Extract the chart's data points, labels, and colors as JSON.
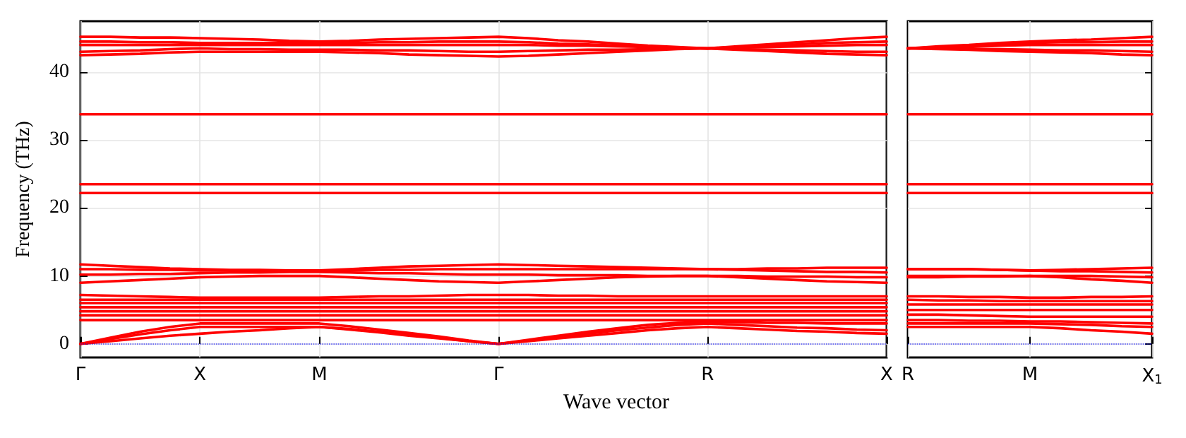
{
  "chart_data": [
    {
      "type": "line",
      "ylabel": "Frequency (THz)",
      "xlabel": "Wave vector",
      "grid": true,
      "marker": "none",
      "line_style": "solid",
      "categories": [
        "Γ",
        null,
        null,
        null,
        "X",
        null,
        null,
        null,
        "M",
        null,
        null,
        null,
        null,
        null,
        "Γ",
        null,
        null,
        null,
        null,
        null,
        null,
        "R",
        null,
        null,
        null,
        null,
        null,
        "X"
      ],
      "ylim": [
        -2,
        47.5
      ],
      "yticks": [
        0,
        10,
        20,
        30,
        40
      ],
      "ref_lines": [
        {
          "axis": "y",
          "value": 0,
          "color": "#0000ff",
          "line_style": "dotted"
        }
      ],
      "series": [
        {
          "color": "#ff0000",
          "values": [
            0,
            0.4,
            0.8,
            1.2,
            1.5,
            1.8,
            2,
            2.3,
            2.5,
            2.1,
            1.7,
            1.2,
            0.8,
            0.4,
            0,
            0.4,
            0.8,
            1.2,
            1.6,
            2,
            2.3,
            2.5,
            2.3,
            2.1,
            1.9,
            1.8,
            1.6,
            1.5
          ]
        },
        {
          "color": "#ff0000",
          "values": [
            0,
            0.7,
            1.4,
            2,
            2.5,
            2.5,
            2.5,
            2.5,
            2.5,
            2.2,
            1.8,
            1.3,
            0.9,
            0.4,
            0,
            0.5,
            1,
            1.5,
            2,
            2.4,
            2.8,
            3,
            2.8,
            2.6,
            2.4,
            2.3,
            2.1,
            2
          ]
        },
        {
          "color": "#ff0000",
          "values": [
            0,
            0.9,
            1.8,
            2.5,
            3,
            3,
            3,
            3,
            3,
            2.6,
            2.1,
            1.6,
            1.1,
            0.5,
            0,
            0.6,
            1.2,
            1.8,
            2.3,
            2.8,
            3.1,
            3.2,
            3.2,
            3.1,
            3.1,
            3,
            3,
            3
          ]
        },
        {
          "color": "#ff0000",
          "values": [
            3.5,
            3.5,
            3.5,
            3.5,
            3.5,
            3.5,
            3.5,
            3.5,
            3.5,
            3.5,
            3.5,
            3.5,
            3.5,
            3.5,
            3.5,
            3.5,
            3.5,
            3.5,
            3.5,
            3.5,
            3.5,
            3.5,
            3.5,
            3.5,
            3.5,
            3.5,
            3.5,
            3.5
          ]
        },
        {
          "color": "#ff0000",
          "values": [
            4.2,
            4.2,
            4.2,
            4.2,
            4.2,
            4.2,
            4.2,
            4.2,
            4.2,
            4.2,
            4.2,
            4.2,
            4.2,
            4.2,
            4.2,
            4.2,
            4.2,
            4.2,
            4.2,
            4.2,
            4.2,
            4.2,
            4.2,
            4.2,
            4.2,
            4.2,
            4.2,
            4.2
          ]
        },
        {
          "color": "#ff0000",
          "values": [
            4.8,
            4.8,
            4.8,
            4.8,
            4.8,
            4.8,
            4.8,
            4.8,
            4.8,
            4.8,
            4.8,
            4.8,
            4.8,
            4.8,
            4.8,
            4.8,
            4.8,
            4.8,
            4.8,
            4.8,
            4.8,
            4.8,
            4.8,
            4.8,
            4.8,
            4.8,
            4.8,
            4.8
          ]
        },
        {
          "color": "#ff0000",
          "values": [
            5.4,
            5.4,
            5.4,
            5.4,
            5.4,
            5.4,
            5.4,
            5.4,
            5.4,
            5.4,
            5.4,
            5.4,
            5.4,
            5.4,
            5.4,
            5.4,
            5.4,
            5.4,
            5.4,
            5.4,
            5.4,
            5.4,
            5.4,
            5.4,
            5.4,
            5.4,
            5.4,
            5.4
          ]
        },
        {
          "color": "#ff0000",
          "values": [
            6,
            6,
            6,
            6,
            6,
            6,
            6,
            6,
            6,
            6,
            6,
            6,
            6,
            6,
            6,
            6,
            6,
            6,
            6,
            6,
            6,
            6,
            6,
            6,
            6,
            6,
            6,
            6
          ]
        },
        {
          "color": "#ff0000",
          "values": [
            6.5,
            6.5,
            6.5,
            6.5,
            6.5,
            6.5,
            6.5,
            6.5,
            6.5,
            6.5,
            6.5,
            6.5,
            6.5,
            6.5,
            6.5,
            6.5,
            6.5,
            6.5,
            6.5,
            6.5,
            6.5,
            6.5,
            6.5,
            6.5,
            6.5,
            6.5,
            6.5,
            6.5
          ]
        },
        {
          "color": "#ff0000",
          "values": [
            7.2,
            7.1,
            7,
            6.9,
            6.8,
            6.8,
            6.8,
            6.8,
            6.8,
            6.9,
            7,
            7,
            7.1,
            7.2,
            7.2,
            7.2,
            7.1,
            7.1,
            7,
            7,
            7,
            7,
            7,
            7,
            7,
            7,
            7,
            7
          ]
        },
        {
          "color": "#ff0000",
          "values": [
            9,
            9.2,
            9.4,
            9.6,
            9.8,
            9.9,
            10,
            10,
            10,
            9.8,
            9.6,
            9.4,
            9.2,
            9.1,
            9,
            9.2,
            9.4,
            9.6,
            9.8,
            9.9,
            10,
            10,
            9.8,
            9.6,
            9.4,
            9.2,
            9.1,
            9
          ]
        },
        {
          "color": "#ff0000",
          "values": [
            10.2,
            10.2,
            10.3,
            10.3,
            10.4,
            10.5,
            10.5,
            10.6,
            10.6,
            10.5,
            10.4,
            10.4,
            10.3,
            10.2,
            10.2,
            10.2,
            10.1,
            10.1,
            10.1,
            10,
            10,
            10,
            10,
            9.9,
            9.9,
            9.9,
            9.8,
            9.8
          ]
        },
        {
          "color": "#ff0000",
          "values": [
            11,
            11,
            10.9,
            10.9,
            10.8,
            10.8,
            10.8,
            10.8,
            10.8,
            10.8,
            10.9,
            10.9,
            11,
            11,
            11,
            11,
            11,
            11,
            11,
            11,
            11,
            11,
            10.9,
            10.8,
            10.7,
            10.6,
            10.6,
            10.5
          ]
        },
        {
          "color": "#ff0000",
          "values": [
            11.7,
            11.5,
            11.3,
            11.1,
            11,
            10.9,
            10.9,
            10.8,
            10.8,
            11,
            11.2,
            11.4,
            11.5,
            11.6,
            11.7,
            11.6,
            11.5,
            11.4,
            11.3,
            11.2,
            11.1,
            11,
            11,
            11.1,
            11.1,
            11.2,
            11.2,
            11.2
          ]
        },
        {
          "color": "#ff0000",
          "values": [
            22.2,
            22.2,
            22.2,
            22.2,
            22.2,
            22.2,
            22.2,
            22.2,
            22.2,
            22.2,
            22.2,
            22.2,
            22.2,
            22.2,
            22.2,
            22.2,
            22.2,
            22.2,
            22.2,
            22.2,
            22.2,
            22.2,
            22.2,
            22.2,
            22.2,
            22.2,
            22.2,
            22.2
          ]
        },
        {
          "color": "#ff0000",
          "values": [
            23.5,
            23.5,
            23.5,
            23.5,
            23.5,
            23.5,
            23.5,
            23.5,
            23.5,
            23.5,
            23.5,
            23.5,
            23.5,
            23.5,
            23.5,
            23.5,
            23.5,
            23.5,
            23.5,
            23.5,
            23.5,
            23.5,
            23.5,
            23.5,
            23.5,
            23.5,
            23.5,
            23.5
          ]
        },
        {
          "color": "#ff0000",
          "values": [
            33.8,
            33.8,
            33.8,
            33.8,
            33.8,
            33.8,
            33.8,
            33.8,
            33.8,
            33.8,
            33.8,
            33.8,
            33.8,
            33.8,
            33.8,
            33.8,
            33.8,
            33.8,
            33.8,
            33.8,
            33.8,
            33.8,
            33.8,
            33.8,
            33.8,
            33.8,
            33.8,
            33.8
          ]
        },
        {
          "color": "#ff0000",
          "values": [
            42.5,
            42.6,
            42.7,
            42.9,
            43,
            43,
            43,
            43,
            43,
            42.9,
            42.8,
            42.6,
            42.5,
            42.4,
            42.3,
            42.4,
            42.6,
            42.8,
            43,
            43.2,
            43.4,
            43.5,
            43.3,
            43.1,
            42.9,
            42.7,
            42.6,
            42.5
          ]
        },
        {
          "color": "#ff0000",
          "values": [
            43,
            43.1,
            43.2,
            43.4,
            43.5,
            43.4,
            43.4,
            43.3,
            43.3,
            43.3,
            43.2,
            43.2,
            43.1,
            43,
            43,
            43.1,
            43.2,
            43.3,
            43.3,
            43.4,
            43.5,
            43.5,
            43.4,
            43.3,
            43.2,
            43.1,
            43,
            43
          ]
        },
        {
          "color": "#ff0000",
          "values": [
            44,
            44,
            44,
            44,
            44,
            44,
            44,
            44,
            44,
            44,
            44,
            44,
            44,
            44,
            44,
            44,
            43.9,
            43.9,
            43.8,
            43.7,
            43.6,
            43.5,
            43.6,
            43.7,
            43.8,
            43.9,
            44,
            44
          ]
        },
        {
          "color": "#ff0000",
          "values": [
            44.5,
            44.5,
            44.4,
            44.4,
            44.3,
            44.3,
            44.3,
            44.3,
            44.3,
            44.3,
            44.4,
            44.4,
            44.5,
            44.5,
            44.5,
            44.4,
            44.2,
            44.1,
            43.9,
            43.8,
            43.6,
            43.5,
            43.7,
            43.9,
            44.1,
            44.3,
            44.4,
            44.5
          ]
        },
        {
          "color": "#ff0000",
          "values": [
            45.2,
            45.2,
            45.1,
            45.1,
            45,
            44.9,
            44.8,
            44.6,
            44.5,
            44.6,
            44.8,
            44.9,
            45,
            45.1,
            45.2,
            45,
            44.7,
            44.5,
            44.2,
            43.9,
            43.7,
            43.5,
            43.8,
            44.1,
            44.4,
            44.7,
            45,
            45.2
          ]
        }
      ]
    },
    {
      "type": "line",
      "grid": true,
      "marker": "none",
      "line_style": "solid",
      "tick_labels": "x",
      "categories": [
        "R",
        null,
        null,
        null,
        "M",
        null,
        null,
        null,
        "X$_{1}$"
      ],
      "ylim": [
        -2,
        47.5
      ],
      "yticks": [
        0,
        10,
        20,
        30,
        40
      ],
      "ref_lines": [
        {
          "axis": "y",
          "value": 0,
          "color": "#0000ff",
          "line_style": "dotted"
        }
      ],
      "series": [
        {
          "color": "#ff0000",
          "values": [
            2.5,
            2.5,
            2.5,
            2.5,
            2.5,
            2.3,
            2,
            1.8,
            1.5
          ]
        },
        {
          "color": "#ff0000",
          "values": [
            3,
            3,
            3,
            3,
            3,
            2.9,
            2.8,
            2.6,
            2.5
          ]
        },
        {
          "color": "#ff0000",
          "values": [
            3.5,
            3.5,
            3.4,
            3.4,
            3.3,
            3.3,
            3.2,
            3.1,
            3
          ]
        },
        {
          "color": "#ff0000",
          "values": [
            4.3,
            4.3,
            4.2,
            4.1,
            4,
            4,
            4,
            4,
            4
          ]
        },
        {
          "color": "#ff0000",
          "values": [
            5,
            5,
            5,
            5,
            5,
            5,
            5,
            5,
            5
          ]
        },
        {
          "color": "#ff0000",
          "values": [
            5.8,
            5.8,
            5.8,
            5.8,
            5.8,
            5.8,
            5.8,
            5.8,
            5.8
          ]
        },
        {
          "color": "#ff0000",
          "values": [
            6.5,
            6.4,
            6.4,
            6.3,
            6.3,
            6.3,
            6.3,
            6.3,
            6.3
          ]
        },
        {
          "color": "#ff0000",
          "values": [
            7,
            7,
            6.9,
            6.9,
            6.8,
            6.8,
            6.9,
            6.9,
            7
          ]
        },
        {
          "color": "#ff0000",
          "values": [
            9.8,
            9.8,
            9.9,
            9.9,
            10,
            9.8,
            9.5,
            9.3,
            9
          ]
        },
        {
          "color": "#ff0000",
          "values": [
            10,
            10,
            10,
            10,
            10,
            10,
            10,
            9.9,
            9.8
          ]
        },
        {
          "color": "#ff0000",
          "values": [
            11,
            11,
            11,
            10.9,
            10.8,
            10.7,
            10.7,
            10.6,
            10.5
          ]
        },
        {
          "color": "#ff0000",
          "values": [
            11,
            11,
            11,
            10.9,
            10.8,
            10.9,
            11,
            11.1,
            11.2
          ]
        },
        {
          "color": "#ff0000",
          "values": [
            22.2,
            22.2,
            22.2,
            22.2,
            22.2,
            22.2,
            22.2,
            22.2,
            22.2
          ]
        },
        {
          "color": "#ff0000",
          "values": [
            23.5,
            23.5,
            23.5,
            23.5,
            23.5,
            23.5,
            23.5,
            23.5,
            23.5
          ]
        },
        {
          "color": "#ff0000",
          "values": [
            33.8,
            33.8,
            33.8,
            33.8,
            33.8,
            33.8,
            33.8,
            33.8,
            33.8
          ]
        },
        {
          "color": "#ff0000",
          "values": [
            43.5,
            43.4,
            43.3,
            43.1,
            43,
            42.9,
            42.8,
            42.6,
            42.5
          ]
        },
        {
          "color": "#ff0000",
          "values": [
            43.5,
            43.5,
            43.4,
            43.4,
            43.3,
            43.2,
            43.2,
            43.1,
            43
          ]
        },
        {
          "color": "#ff0000",
          "values": [
            43.5,
            43.6,
            43.7,
            43.9,
            44,
            44,
            44,
            44,
            44
          ]
        },
        {
          "color": "#ff0000",
          "values": [
            43.5,
            43.7,
            43.9,
            44.1,
            44.3,
            44.4,
            44.4,
            44.5,
            44.5
          ]
        },
        {
          "color": "#ff0000",
          "values": [
            43.5,
            43.8,
            44,
            44.3,
            44.5,
            44.7,
            44.8,
            45,
            45.2
          ]
        }
      ]
    }
  ]
}
